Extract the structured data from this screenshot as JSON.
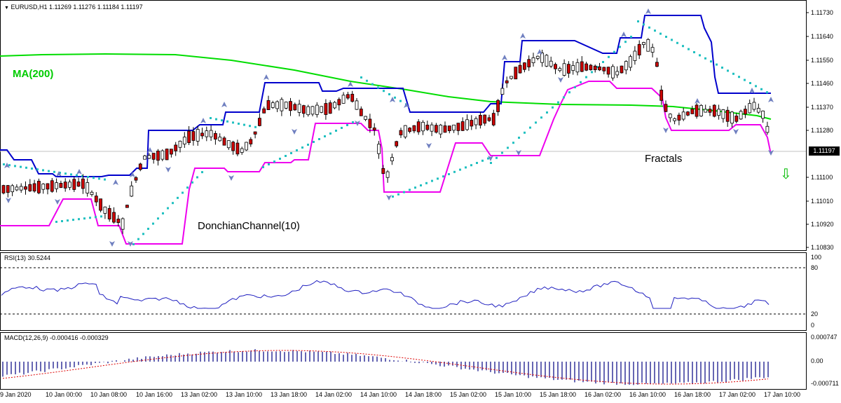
{
  "header": {
    "arrow_glyph": "▼",
    "title": "EURUSD,H1  1.11269 1.11276 1.11184 1.11197"
  },
  "annotations": {
    "ma_label": "MA(200)",
    "donchian_label": "DonchianChannel(10)",
    "fractals_label": "Fractals",
    "arrow_glyph": "⇩"
  },
  "price_axis": {
    "labels": [
      "1.11730",
      "1.11640",
      "1.11550",
      "1.11460",
      "1.11370",
      "1.11280",
      "1.11100",
      "1.11010",
      "1.10920",
      "1.10830"
    ],
    "current": "1.11197"
  },
  "rsi": {
    "label": "RSI(13) 30.5244",
    "levels": [
      "100",
      "80",
      "20",
      "0"
    ]
  },
  "macd": {
    "label": "MACD(12,26,9) -0.000416 -0.000329",
    "levels": [
      "0.000747",
      "0.00",
      "-0.000711"
    ]
  },
  "time_axis": {
    "labels": [
      "9 Jan 2020",
      "10 Jan 00:00",
      "10 Jan 08:00",
      "10 Jan 16:00",
      "13 Jan 02:00",
      "13 Jan 10:00",
      "13 Jan 18:00",
      "14 Jan 02:00",
      "14 Jan 10:00",
      "14 Jan 18:00",
      "15 Jan 02:00",
      "15 Jan 10:00",
      "15 Jan 18:00",
      "16 Jan 02:00",
      "16 Jan 10:00",
      "16 Jan 18:00",
      "17 Jan 02:00",
      "17 Jan 10:00"
    ]
  },
  "colors": {
    "bull": "#ffffff",
    "bear": "#cc0000",
    "wick": "#000000",
    "ma": "#00dd00",
    "donchian_upper": "#0000cc",
    "donchian_lower": "#ee00ee",
    "psar": "#20c0c0",
    "fractal": "#7080c0",
    "rsi": "#2020c0",
    "macd_hist": "#000080",
    "macd_signal": "#dd0000",
    "arrow": "#00bb00"
  }
}
